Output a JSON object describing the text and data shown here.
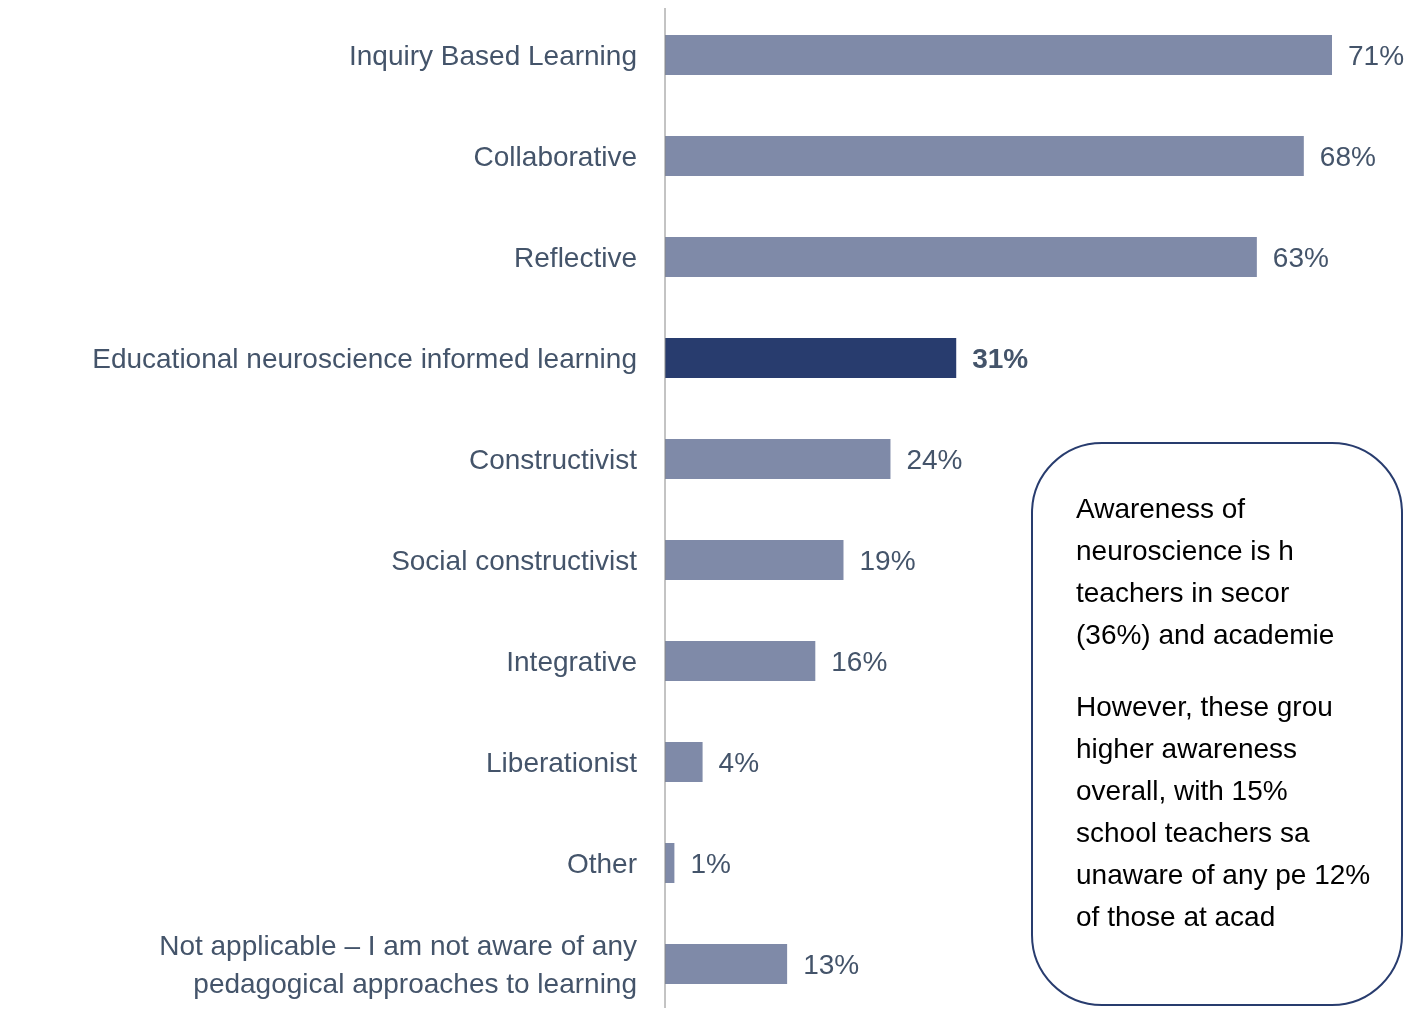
{
  "chart_data": {
    "type": "bar",
    "orientation": "horizontal",
    "value_labels": [
      "71%",
      "68%",
      "63%",
      "31%",
      "24%",
      "19%",
      "16%",
      "4%",
      "1%",
      "13%"
    ],
    "categories": [
      "Inquiry Based Learning",
      "Collaborative",
      "Reflective",
      "Educational neuroscience informed learning",
      "Constructivist",
      "Social constructivist",
      "Integrative",
      "Liberationist",
      "Other",
      "Not applicable – I am not aware of any pedagogical approaches to learning"
    ],
    "values": [
      71,
      68,
      63,
      31,
      24,
      19,
      16,
      4,
      1,
      13
    ],
    "colors": [
      "#7f8aa8",
      "#7f8aa8",
      "#7f8aa8",
      "#283c6e",
      "#7f8aa8",
      "#7f8aa8",
      "#7f8aa8",
      "#7f8aa8",
      "#7f8aa8",
      "#7f8aa8"
    ],
    "annotations": [
      "Awareness of neuroscience is h teachers in secor (36%) and academie",
      "However, these grou higher awareness overall, with 15% school teachers sa unaware of any pe 12% of those at acad"
    ]
  }
}
